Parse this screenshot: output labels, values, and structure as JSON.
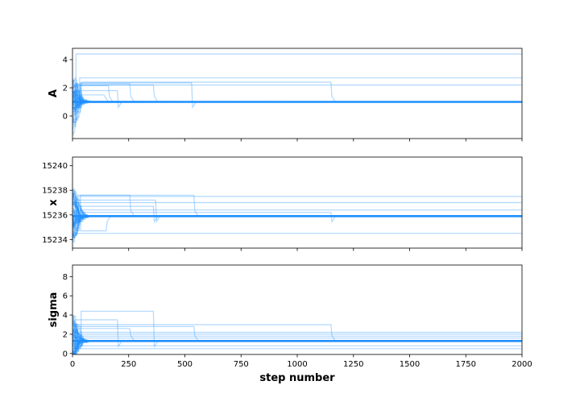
{
  "chart_data": {
    "type": "line",
    "description_of_layout": "",
    "xlabel": "step number",
    "xlim": [
      0,
      2000
    ],
    "xticks": [
      0,
      250,
      500,
      750,
      1000,
      1250,
      1500,
      1750,
      2000
    ],
    "line_color": "#1e90ff",
    "panels": [
      {
        "ylabel": "A",
        "ylim": [
          -1.6,
          4.8
        ],
        "yticks": [
          0,
          2,
          4
        ],
        "converged_value": 1.0,
        "stuck_walkers": [
          {
            "value": 4.4,
            "until": 2000
          },
          {
            "value": 2.7,
            "until": 2000
          },
          {
            "value": 2.2,
            "until": 2000
          },
          {
            "value": 2.4,
            "until": 1150
          },
          {
            "value": 2.35,
            "until": 530
          },
          {
            "value": 2.2,
            "until": 360
          },
          {
            "value": 2.3,
            "until": 255
          },
          {
            "value": 2.15,
            "until": 160
          },
          {
            "value": 1.8,
            "until": 200
          },
          {
            "value": 1.5,
            "until": 140
          }
        ]
      },
      {
        "ylabel": "x",
        "ylim": [
          15233.3,
          15240.7
        ],
        "yticks": [
          15234,
          15236,
          15238,
          15240
        ],
        "converged_value": 15235.9,
        "stuck_walkers": [
          {
            "value": 15237.5,
            "until": 2000
          },
          {
            "value": 15237.0,
            "until": 2000
          },
          {
            "value": 15236.4,
            "until": 2000
          },
          {
            "value": 15234.5,
            "until": 2000
          },
          {
            "value": 15236.2,
            "until": 1150
          },
          {
            "value": 15237.6,
            "until": 540
          },
          {
            "value": 15237.2,
            "until": 370
          },
          {
            "value": 15236.7,
            "until": 360
          },
          {
            "value": 15237.6,
            "until": 255
          },
          {
            "value": 15234.7,
            "until": 150
          }
        ]
      },
      {
        "ylabel": "sigma",
        "ylim": [
          -0.1,
          9.2
        ],
        "yticks": [
          0,
          2,
          4,
          6,
          8
        ],
        "converged_value": 1.3,
        "stuck_walkers": [
          {
            "value": 2.2,
            "until": 2000
          },
          {
            "value": 2.0,
            "until": 2000
          },
          {
            "value": 1.8,
            "until": 2000
          },
          {
            "value": 1.6,
            "until": 2000
          },
          {
            "value": 0.8,
            "until": 2000
          },
          {
            "value": 0.5,
            "until": 2000
          },
          {
            "value": 3.0,
            "until": 1150
          },
          {
            "value": 2.8,
            "until": 540
          },
          {
            "value": 4.4,
            "until": 360
          },
          {
            "value": 2.6,
            "until": 255
          },
          {
            "value": 3.5,
            "until": 200
          }
        ]
      }
    ]
  }
}
